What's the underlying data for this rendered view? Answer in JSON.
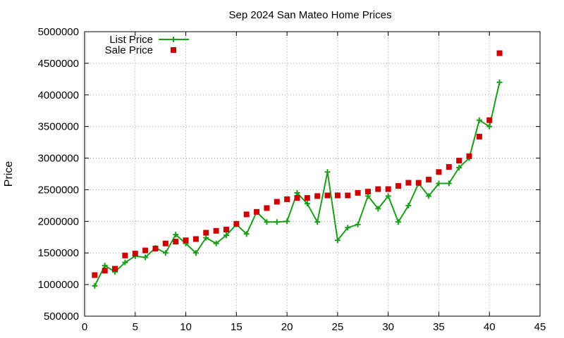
{
  "chart_data": {
    "type": "line",
    "title": "Sep 2024 San Mateo Home Prices",
    "xlabel": "",
    "ylabel": "Price",
    "xlim": [
      0,
      45
    ],
    "ylim": [
      500000,
      5000000
    ],
    "x_ticks": [
      0,
      5,
      10,
      15,
      20,
      25,
      30,
      35,
      40,
      45
    ],
    "y_ticks": [
      500000,
      1000000,
      1500000,
      2000000,
      2500000,
      3000000,
      3500000,
      4000000,
      4500000,
      5000000
    ],
    "grid": true,
    "legend_position": "top-left",
    "x": [
      1,
      2,
      3,
      4,
      5,
      6,
      7,
      8,
      9,
      10,
      11,
      12,
      13,
      14,
      15,
      16,
      17,
      18,
      19,
      20,
      21,
      22,
      23,
      24,
      25,
      26,
      27,
      28,
      29,
      30,
      31,
      32,
      33,
      34,
      35,
      36,
      37,
      38,
      39,
      40,
      41
    ],
    "series": [
      {
        "name": "List Price",
        "style": "lines+points",
        "color": "#1a9e1a",
        "values": [
          980000,
          1300000,
          1200000,
          1350000,
          1450000,
          1430000,
          1580000,
          1500000,
          1790000,
          1650000,
          1500000,
          1740000,
          1650000,
          1780000,
          1950000,
          1800000,
          2150000,
          1990000,
          1990000,
          2000000,
          2450000,
          2280000,
          1990000,
          2780000,
          1700000,
          1900000,
          1950000,
          2400000,
          2200000,
          2400000,
          1990000,
          2250000,
          2600000,
          2400000,
          2600000,
          2600000,
          2850000,
          3000000,
          3600000,
          3500000,
          4200000
        ]
      },
      {
        "name": "Sale Price",
        "style": "points",
        "color": "#cc0000",
        "values": [
          1150000,
          1220000,
          1250000,
          1460000,
          1490000,
          1540000,
          1570000,
          1650000,
          1680000,
          1700000,
          1720000,
          1820000,
          1850000,
          1870000,
          1960000,
          2110000,
          2150000,
          2210000,
          2310000,
          2350000,
          2370000,
          2370000,
          2400000,
          2410000,
          2410000,
          2410000,
          2450000,
          2470000,
          2510000,
          2510000,
          2560000,
          2610000,
          2610000,
          2660000,
          2780000,
          2860000,
          2960000,
          3030000,
          3340000,
          3600000,
          4660000
        ]
      }
    ]
  }
}
